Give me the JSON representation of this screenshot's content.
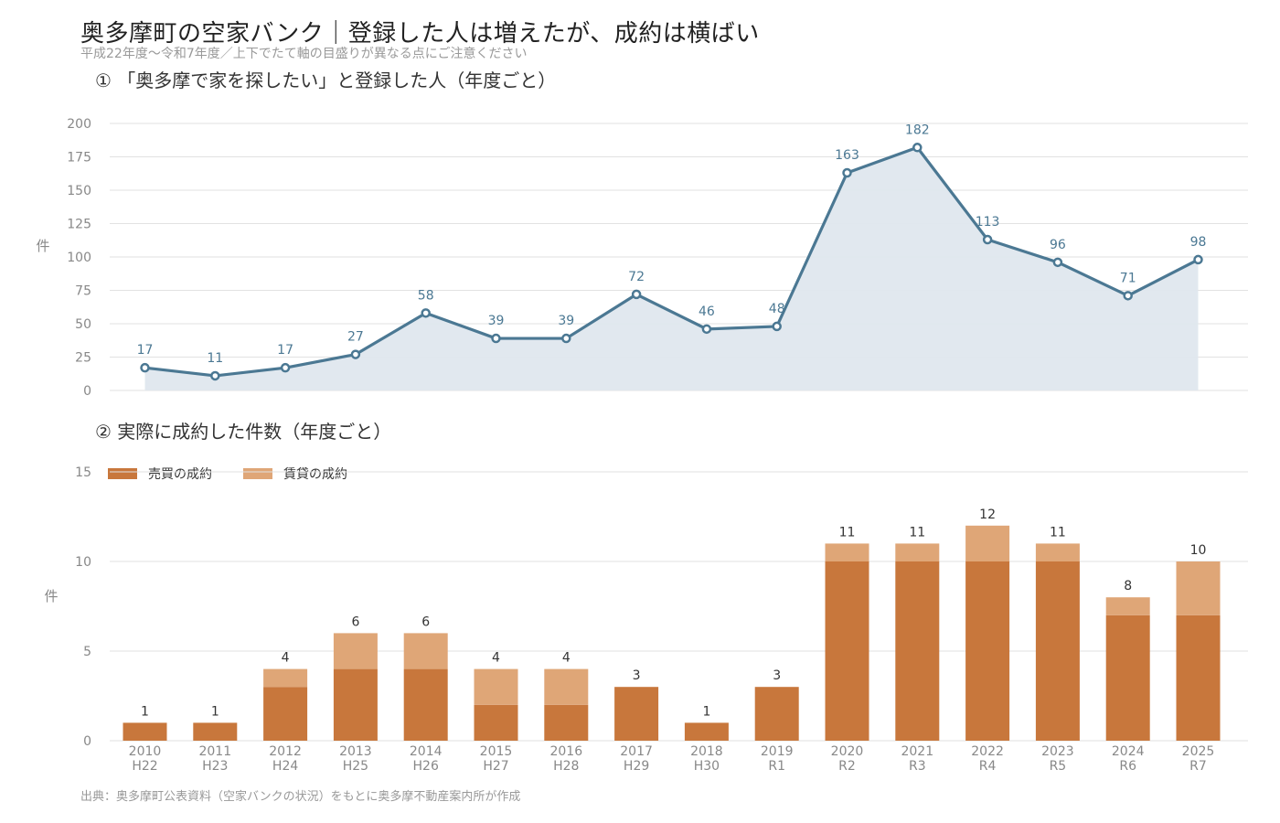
{
  "page": {
    "title": "奥多摩町の空家バンク｜登録した人は増えたが、成約は横ばい",
    "subtitle": "平成22年度〜令和7年度／上下でたて軸の目盛りが異なる点にご注意ください",
    "panel1_title": "① 「奥多摩で家を探したい」と登録した人（年度ごと）",
    "panel2_title": "② 実際に成約した件数（年度ごと）",
    "source": "出典：奥多摩町公表資料（空家バンクの状況）をもとに奥多摩不動産案内所が作成"
  },
  "colors": {
    "line": "#4b7893",
    "area": "#dfe7ee",
    "sale": "#c8773c",
    "rent": "#dfa677",
    "grid": "#e2e2e2",
    "axis_text": "#888888",
    "label_line": "#4b7893",
    "label_bar": "#333333"
  },
  "chart_data": [
    {
      "type": "area",
      "title": "① 「奥多摩で家を探したい」と登録した人（年度ごと）",
      "ylabel": "件",
      "ylim": [
        0,
        200
      ],
      "yticks": [
        0,
        25,
        50,
        75,
        100,
        125,
        150,
        175,
        200
      ],
      "grid": true,
      "categories": [
        "2010",
        "2011",
        "2012",
        "2013",
        "2014",
        "2015",
        "2016",
        "2017",
        "2018",
        "2019",
        "2020",
        "2021",
        "2022",
        "2023",
        "2024",
        "2025"
      ],
      "categories_sub": [
        "H22",
        "H23",
        "H24",
        "H25",
        "H26",
        "H27",
        "H28",
        "H29",
        "H30",
        "R1",
        "R2",
        "R3",
        "R4",
        "R5",
        "R6",
        "R7"
      ],
      "values": [
        17,
        11,
        17,
        27,
        58,
        39,
        39,
        72,
        46,
        48,
        163,
        182,
        113,
        96,
        71,
        98
      ]
    },
    {
      "type": "bar",
      "stacked": true,
      "title": "② 実際に成約した件数（年度ごと）",
      "ylabel": "件",
      "ylim": [
        0,
        15
      ],
      "yticks": [
        0,
        5,
        10,
        15
      ],
      "grid": true,
      "legend": "top-left",
      "categories": [
        "2010",
        "2011",
        "2012",
        "2013",
        "2014",
        "2015",
        "2016",
        "2017",
        "2018",
        "2019",
        "2020",
        "2021",
        "2022",
        "2023",
        "2024",
        "2025"
      ],
      "categories_sub": [
        "H22",
        "H23",
        "H24",
        "H25",
        "H26",
        "H27",
        "H28",
        "H29",
        "H30",
        "R1",
        "R2",
        "R3",
        "R4",
        "R5",
        "R6",
        "R7"
      ],
      "series": [
        {
          "name": "売買の成約",
          "values": [
            1,
            1,
            3,
            4,
            4,
            2,
            2,
            3,
            1,
            3,
            10,
            10,
            10,
            10,
            7,
            7
          ]
        },
        {
          "name": "賃貸の成約",
          "values": [
            0,
            0,
            1,
            2,
            2,
            2,
            2,
            0,
            0,
            0,
            1,
            1,
            2,
            1,
            1,
            3
          ]
        }
      ],
      "totals": [
        1,
        1,
        4,
        6,
        6,
        4,
        4,
        3,
        1,
        3,
        11,
        11,
        12,
        11,
        8,
        10
      ]
    }
  ]
}
